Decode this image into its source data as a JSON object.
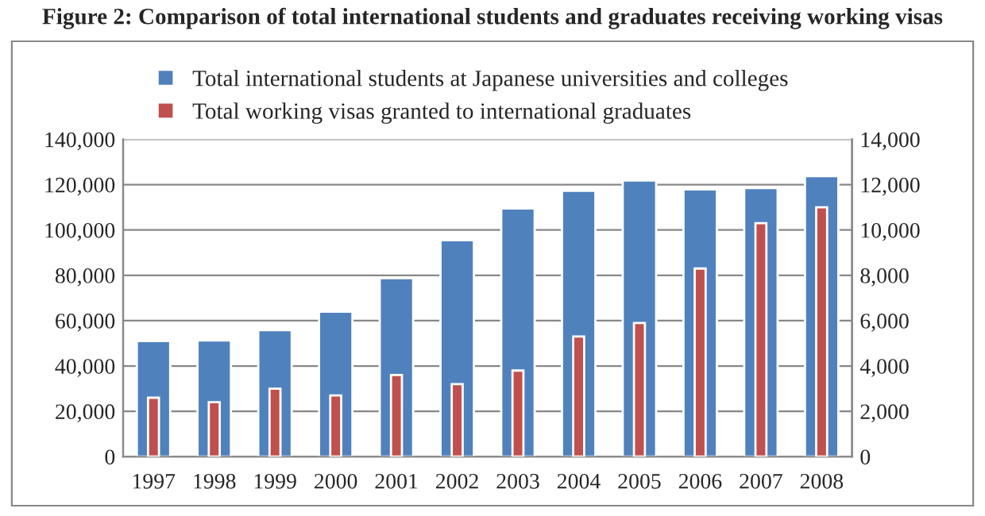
{
  "chart_data": {
    "type": "bar",
    "title": "Figure 2: Comparison of total international students and graduates receiving working visas",
    "categories": [
      "1997",
      "1998",
      "1999",
      "2000",
      "2001",
      "2002",
      "2003",
      "2004",
      "2005",
      "2006",
      "2007",
      "2008"
    ],
    "series": [
      {
        "name": "Total international students at Japanese universities and colleges",
        "color": "#4f81bd",
        "values": [
          51000,
          51300,
          55800,
          64000,
          78800,
          95500,
          109500,
          117300,
          121800,
          117900,
          118500,
          123800
        ]
      },
      {
        "name": "Total working visas granted to international graduates",
        "color": "#c0504d",
        "axis": "y2",
        "values": [
          2600,
          2400,
          3000,
          2700,
          3600,
          3200,
          3800,
          5300,
          5900,
          8300,
          10300,
          11000
        ]
      }
    ],
    "ylim": [
      0,
      140000
    ],
    "yticks": [
      {
        "value": 0,
        "label": "0"
      },
      {
        "value": 20000,
        "label": "20,000"
      },
      {
        "value": 40000,
        "label": "40,000"
      },
      {
        "value": 60000,
        "label": "60,000"
      },
      {
        "value": 80000,
        "label": "80,000"
      },
      {
        "value": 100000,
        "label": "100,000"
      },
      {
        "value": 120000,
        "label": "120,000"
      },
      {
        "value": 140000,
        "label": "140,000"
      }
    ],
    "y2lim": [
      0,
      14000
    ],
    "y2ticks": [
      {
        "value": 0,
        "label": "0"
      },
      {
        "value": 2000,
        "label": "2,000"
      },
      {
        "value": 4000,
        "label": "4,000"
      },
      {
        "value": 6000,
        "label": "6,000"
      },
      {
        "value": 8000,
        "label": "8,000"
      },
      {
        "value": 10000,
        "label": "10,000"
      },
      {
        "value": 12000,
        "label": "12,000"
      },
      {
        "value": 14000,
        "label": "14,000"
      }
    ],
    "grid": "y",
    "legend": "top"
  }
}
